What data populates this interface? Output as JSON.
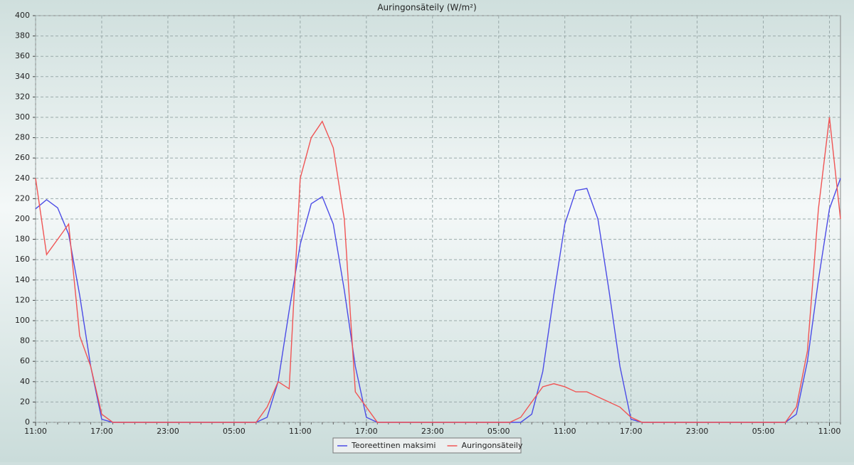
{
  "chart_data": {
    "type": "line",
    "title": "Auringonsäteily (W/m²)",
    "categories": [
      "11:00",
      null,
      null,
      null,
      null,
      null,
      "17:00",
      null,
      null,
      null,
      null,
      null,
      "23:00",
      null,
      null,
      null,
      null,
      null,
      "05:00",
      null,
      null,
      null,
      null,
      null,
      "11:00",
      null,
      null,
      null,
      null,
      null,
      "17:00",
      null,
      null,
      null,
      null,
      null,
      "23:00",
      null,
      null,
      null,
      null,
      null,
      "05:00",
      null,
      null,
      null,
      null,
      null,
      "11:00",
      null,
      null,
      null,
      null,
      null,
      "17:00",
      null,
      null,
      null,
      null,
      null,
      "23:00",
      null,
      null,
      null,
      null,
      null,
      "05:00",
      null,
      null,
      null,
      null,
      null,
      "11:00",
      null
    ],
    "series": [
      {
        "name": "Teoreettinen maksimi",
        "color": "#4b4be6",
        "values": [
          210,
          219,
          211,
          185,
          125,
          55,
          3,
          0,
          0,
          0,
          0,
          0,
          0,
          0,
          0,
          0,
          0,
          0,
          0,
          0,
          0,
          5,
          40,
          110,
          175,
          215,
          222,
          195,
          130,
          55,
          5,
          0,
          0,
          0,
          0,
          0,
          0,
          0,
          0,
          0,
          0,
          0,
          0,
          0,
          0,
          8,
          50,
          125,
          195,
          228,
          230,
          200,
          130,
          55,
          3,
          0,
          0,
          0,
          0,
          0,
          0,
          0,
          0,
          0,
          0,
          0,
          0,
          0,
          0,
          8,
          60,
          140,
          210,
          240
        ]
      },
      {
        "name": "Auringonsäteily",
        "color": "#f05555",
        "values": [
          240,
          165,
          180,
          195,
          85,
          55,
          8,
          0,
          0,
          0,
          0,
          0,
          0,
          0,
          0,
          0,
          0,
          0,
          0,
          0,
          0,
          15,
          40,
          33,
          240,
          280,
          296,
          270,
          200,
          30,
          15,
          0,
          0,
          0,
          0,
          0,
          0,
          0,
          0,
          0,
          0,
          0,
          0,
          0,
          5,
          20,
          35,
          38,
          35,
          30,
          30,
          25,
          20,
          15,
          5,
          0,
          0,
          0,
          0,
          0,
          0,
          0,
          0,
          0,
          0,
          0,
          0,
          0,
          0,
          15,
          70,
          210,
          300,
          200
        ]
      }
    ],
    "ylim": [
      0,
      400
    ],
    "yticks": [
      0,
      20,
      40,
      60,
      80,
      100,
      120,
      140,
      160,
      180,
      200,
      220,
      240,
      260,
      280,
      300,
      320,
      340,
      360,
      380,
      400
    ],
    "grid": true
  }
}
